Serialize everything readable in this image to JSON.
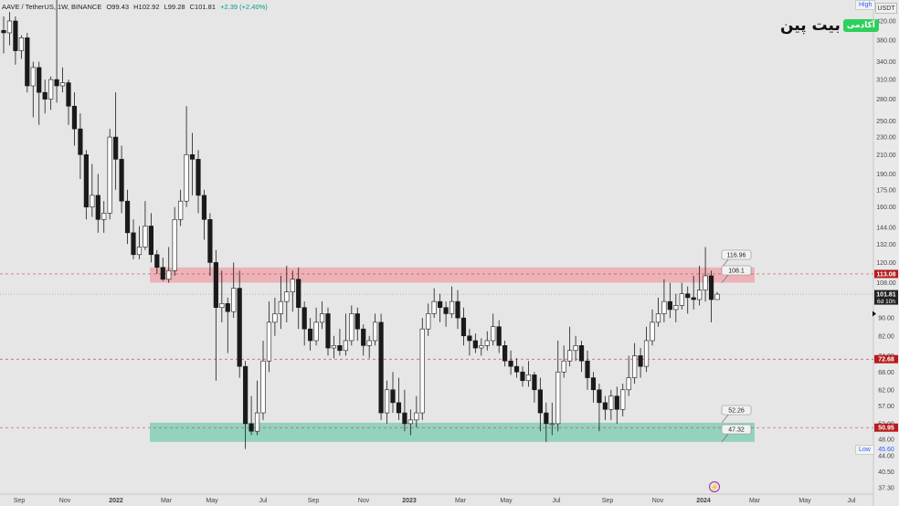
{
  "header": {
    "symbol": "AAVE / TetherUS, 1W, BINANCE",
    "open": "O99.43",
    "high": "H102.92",
    "low": "L99.28",
    "close": "C101.81",
    "change": "+2.39 (+2.40%)"
  },
  "axis": {
    "currency": "USDT",
    "high_label": "High",
    "low_label": "Low"
  },
  "logo": {
    "brand": "بیت پین",
    "badge": "آکادمی"
  },
  "chart_data": {
    "type": "candlestick",
    "scale": "log",
    "y_ticks": [
      "420.00",
      "380.00",
      "340.00",
      "310.00",
      "280.00",
      "250.00",
      "230.00",
      "210.00",
      "190.00",
      "175.00",
      "160.00",
      "144.00",
      "132.00",
      "120.00",
      "108.00",
      "98.00",
      "90.00",
      "82.00",
      "74.00",
      "68.00",
      "62.00",
      "57.00",
      "52.00",
      "48.00",
      "44.00",
      "40.50",
      "37.30"
    ],
    "x_ticks": [
      "Sep",
      "Nov",
      "2022",
      "Mar",
      "May",
      "Jul",
      "Sep",
      "Nov",
      "2023",
      "Mar",
      "May",
      "Jul",
      "Sep",
      "Nov",
      "2024",
      "Mar",
      "May",
      "Jul"
    ],
    "last_price": "101.81",
    "last_countdown": "6d 10h",
    "marked_levels": [
      {
        "value": 113.08,
        "label": "113.08"
      },
      {
        "value": 72.68,
        "label": "72.68"
      },
      {
        "value": 50.95,
        "label": "50.95"
      }
    ],
    "low_value": "45.60",
    "zones": [
      {
        "name": "resistance",
        "top": 116.96,
        "bottom": 108.1,
        "labels": [
          "116.96",
          "108.10"
        ]
      },
      {
        "name": "support",
        "top": 52.26,
        "bottom": 47.32,
        "labels": [
          "52.26",
          "47.32"
        ]
      }
    ],
    "candles": [
      [
        400,
        395,
        430,
        355
      ],
      [
        395,
        420,
        440,
        370
      ],
      [
        420,
        360,
        430,
        335
      ],
      [
        360,
        385,
        390,
        345
      ],
      [
        385,
        300,
        395,
        290
      ],
      [
        300,
        330,
        340,
        255
      ],
      [
        330,
        290,
        340,
        245
      ],
      [
        290,
        280,
        310,
        260
      ],
      [
        280,
        310,
        315,
        265
      ],
      [
        310,
        300,
        470,
        275
      ],
      [
        300,
        305,
        330,
        290
      ],
      [
        305,
        270,
        310,
        245
      ],
      [
        270,
        240,
        290,
        220
      ],
      [
        240,
        210,
        260,
        185
      ],
      [
        210,
        160,
        215,
        150
      ],
      [
        160,
        170,
        200,
        152
      ],
      [
        170,
        150,
        190,
        140
      ],
      [
        150,
        155,
        165,
        140
      ],
      [
        155,
        230,
        240,
        150
      ],
      [
        230,
        205,
        290,
        175
      ],
      [
        205,
        165,
        220,
        155
      ],
      [
        165,
        140,
        175,
        132
      ],
      [
        140,
        125,
        150,
        122
      ],
      [
        125,
        130,
        145,
        122
      ],
      [
        130,
        145,
        165,
        128
      ],
      [
        145,
        125,
        155,
        120
      ],
      [
        125,
        117,
        128,
        113
      ],
      [
        117,
        110,
        123,
        109
      ],
      [
        110,
        115,
        130,
        108
      ],
      [
        115,
        150,
        160,
        112
      ],
      [
        150,
        165,
        175,
        145
      ],
      [
        165,
        210,
        270,
        160
      ],
      [
        210,
        205,
        235,
        170
      ],
      [
        205,
        170,
        215,
        155
      ],
      [
        170,
        150,
        175,
        135
      ],
      [
        150,
        120,
        155,
        112
      ],
      [
        120,
        95,
        128,
        65
      ],
      [
        95,
        97,
        115,
        88
      ],
      [
        97,
        93,
        100,
        75
      ],
      [
        93,
        105,
        120,
        90
      ],
      [
        105,
        70,
        115,
        66
      ],
      [
        70,
        52,
        72,
        45.6
      ],
      [
        52,
        50,
        60,
        49
      ],
      [
        50,
        55,
        65,
        49
      ],
      [
        55,
        72,
        80,
        53
      ],
      [
        72,
        88,
        98,
        68
      ],
      [
        88,
        92,
        100,
        82
      ],
      [
        92,
        98,
        112,
        85
      ],
      [
        98,
        103,
        118,
        88
      ],
      [
        103,
        110,
        115,
        93
      ],
      [
        110,
        95,
        117,
        85
      ],
      [
        95,
        85,
        98,
        78
      ],
      [
        85,
        80,
        90,
        76
      ],
      [
        80,
        88,
        95,
        78
      ],
      [
        88,
        92,
        98,
        85
      ],
      [
        92,
        77,
        95,
        74
      ],
      [
        77,
        78,
        82,
        73
      ],
      [
        78,
        76,
        85,
        74
      ],
      [
        76,
        80,
        92,
        74
      ],
      [
        80,
        92,
        96,
        78
      ],
      [
        92,
        85,
        95,
        80
      ],
      [
        85,
        78,
        87,
        74
      ],
      [
        78,
        80,
        82,
        73
      ],
      [
        80,
        88,
        92,
        78
      ],
      [
        88,
        55,
        92,
        53
      ],
      [
        55,
        62,
        65,
        52
      ],
      [
        62,
        58,
        68,
        55
      ],
      [
        58,
        55,
        66,
        53
      ],
      [
        55,
        52,
        62,
        50
      ],
      [
        52,
        53,
        56,
        49
      ],
      [
        53,
        55,
        60,
        51
      ],
      [
        55,
        85,
        90,
        53
      ],
      [
        85,
        92,
        97,
        82
      ],
      [
        92,
        98,
        105,
        90
      ],
      [
        98,
        95,
        102,
        88
      ],
      [
        95,
        92,
        98,
        86
      ],
      [
        92,
        98,
        106,
        90
      ],
      [
        98,
        90,
        104,
        85
      ],
      [
        90,
        82,
        95,
        78
      ],
      [
        82,
        80,
        85,
        74
      ],
      [
        80,
        77,
        83,
        75
      ],
      [
        77,
        78,
        81,
        74
      ],
      [
        78,
        80,
        84,
        76
      ],
      [
        80,
        86,
        92,
        78
      ],
      [
        86,
        78,
        89,
        75
      ],
      [
        78,
        72,
        80,
        70
      ],
      [
        72,
        70,
        76,
        67
      ],
      [
        70,
        68,
        73,
        66
      ],
      [
        68,
        65,
        70,
        63
      ],
      [
        65,
        67,
        72,
        63
      ],
      [
        67,
        62,
        68,
        58
      ],
      [
        62,
        55,
        66,
        50
      ],
      [
        55,
        52,
        58,
        47.3
      ],
      [
        52,
        52,
        58,
        49
      ],
      [
        52,
        68,
        80,
        50
      ],
      [
        68,
        72,
        78,
        66
      ],
      [
        72,
        76,
        86,
        70
      ],
      [
        76,
        78,
        82,
        72
      ],
      [
        78,
        72,
        80,
        68
      ],
      [
        72,
        66,
        76,
        62
      ],
      [
        66,
        62,
        68,
        58
      ],
      [
        62,
        58,
        64,
        50
      ],
      [
        58,
        56,
        60,
        53
      ],
      [
        56,
        60,
        62,
        53
      ],
      [
        60,
        56,
        63,
        52
      ],
      [
        56,
        62,
        64,
        54
      ],
      [
        62,
        66,
        74,
        60
      ],
      [
        66,
        74,
        79,
        64
      ],
      [
        74,
        70,
        77,
        66
      ],
      [
        70,
        80,
        86,
        68
      ],
      [
        80,
        88,
        94,
        78
      ],
      [
        88,
        92,
        100,
        86
      ],
      [
        92,
        98,
        110,
        88
      ],
      [
        98,
        94,
        108,
        90
      ],
      [
        94,
        96,
        102,
        88
      ],
      [
        96,
        102,
        108,
        94
      ],
      [
        102,
        100,
        106,
        92
      ],
      [
        100,
        99,
        112,
        94
      ],
      [
        99,
        104,
        118,
        96
      ],
      [
        104,
        112,
        130,
        98
      ],
      [
        112,
        99,
        115,
        88
      ],
      [
        99,
        101.81,
        102.92,
        99.28
      ]
    ]
  }
}
